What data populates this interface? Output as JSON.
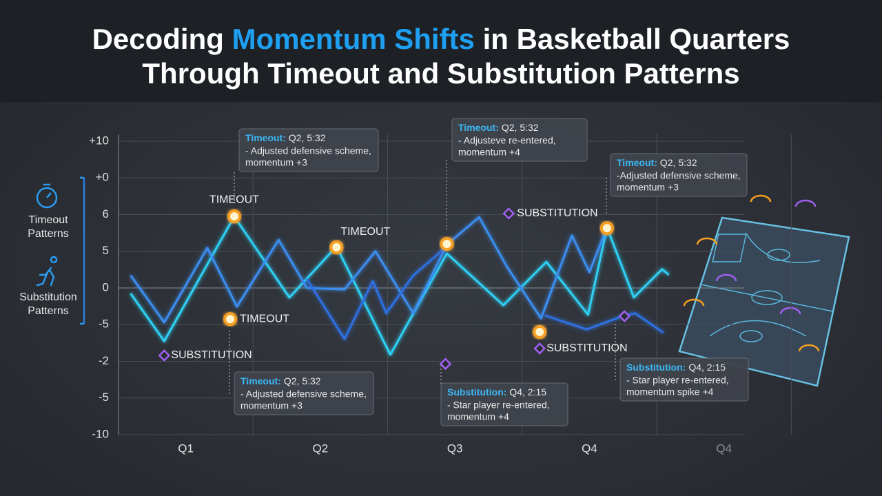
{
  "chart_data": {
    "type": "line",
    "title": {
      "line1": [
        "Decoding ",
        "Momentum Shifts",
        " in Basketball Quarters"
      ],
      "line2": "Through Timeout and Substitution Patterns"
    },
    "sidebar": [
      {
        "label_lines": [
          "Timeout",
          "Patterns"
        ]
      },
      {
        "label_lines": [
          "Substitution",
          "Patterns"
        ]
      }
    ],
    "y_axis_labels": [
      "+10",
      "+0",
      "6",
      "5",
      "0",
      "-5",
      "-2",
      "-5",
      "-10"
    ],
    "xlim": [
      0.5,
      5.15
    ],
    "ylim": [
      0,
      8
    ],
    "xticks": [
      {
        "value": 1,
        "label": "Q1"
      },
      {
        "value": 2,
        "label": "Q2"
      },
      {
        "value": 3,
        "label": "Q3"
      },
      {
        "value": 4,
        "label": "Q4"
      },
      {
        "value": 5,
        "label": "Q4"
      }
    ],
    "series": [
      {
        "color": "#2fd0f5",
        "x": [
          0.59,
          0.84,
          1.36,
          1.77,
          2.12,
          2.52,
          2.94,
          3.36,
          3.68,
          3.99,
          4.13,
          4.33,
          4.54,
          4.59
        ],
        "values": [
          3.85,
          2.55,
          5.95,
          3.74,
          5.13,
          2.18,
          4.94,
          3.53,
          4.71,
          3.27,
          5.65,
          3.74,
          4.51,
          4.36
        ]
      },
      {
        "color": "#3a8ef0",
        "x": [
          0.59,
          0.84,
          1.16,
          1.38,
          1.69,
          1.9,
          2.18,
          2.41,
          2.69,
          2.94,
          3.18,
          3.39,
          3.64,
          3.87,
          4.0,
          4.12
        ],
        "values": [
          4.34,
          3.06,
          5.09,
          3.49,
          5.31,
          4.0,
          3.96,
          5.0,
          3.31,
          5.18,
          5.93,
          4.56,
          3.17,
          5.43,
          4.43,
          5.56
        ]
      },
      {
        "color": "#2f6fe0",
        "x": [
          1.9,
          2.18,
          2.39,
          2.49,
          2.69,
          2.94,
          3.4,
          3.67,
          3.98,
          4.26,
          4.34,
          4.55
        ],
        "values": [
          4.24,
          2.61,
          4.19,
          3.31,
          4.34,
          5.13,
          null,
          3.25,
          2.87,
          3.25,
          3.31,
          2.78
        ]
      }
    ],
    "events": [
      {
        "kind": "timeout",
        "x": 1.36,
        "y": 5.95,
        "label": "TIMEOUT"
      },
      {
        "kind": "timeout",
        "x": 1.33,
        "y": 3.15,
        "label": "TIMEOUT"
      },
      {
        "kind": "timeout",
        "x": 2.12,
        "y": 5.11,
        "label": "TIMEOUT"
      },
      {
        "kind": "timeout",
        "x": 2.94,
        "y": 5.2
      },
      {
        "kind": "timeout",
        "x": 3.63,
        "y": 2.8
      },
      {
        "kind": "timeout",
        "x": 4.13,
        "y": 5.63
      },
      {
        "kind": "substitution",
        "x": 0.84,
        "y": 2.16,
        "label": "SUBSTITUTION"
      },
      {
        "kind": "substitution",
        "x": 2.93,
        "y": 1.93
      },
      {
        "kind": "substitution",
        "x": 3.4,
        "y": 6.03,
        "label": "SUBSTITUTION"
      },
      {
        "kind": "substitution",
        "x": 3.63,
        "y": 2.35,
        "label": "SUBSTITUTION"
      },
      {
        "kind": "substitution",
        "x": 4.26,
        "y": 3.23
      }
    ],
    "callouts": [
      {
        "head": "Timeout:",
        "time": "Q2, 5:32",
        "lines": [
          "- Adjusted defensive scheme,",
          "momentum +3"
        ]
      },
      {
        "head": "Timeout:",
        "time": "Q2, 5:32",
        "lines": [
          "- Adjustеve re-entered,",
          "momentum +4"
        ]
      },
      {
        "head": "Timeout:",
        "time": "Q2, 5:32",
        "lines": [
          "-Adjusted defensive scheme,",
          "momentum +3"
        ]
      },
      {
        "head": "Timeout:",
        "time": "Q2, 5:32",
        "lines": [
          "- Adjusted defensive scheme,",
          "momentum +3"
        ]
      },
      {
        "head": "Substitution:",
        "time": "Q4, 2:15",
        "lines": [
          "- Star player re-entered,",
          "momentum +4"
        ]
      },
      {
        "head": "Substitution:",
        "time": "Q4, 2:15",
        "lines": [
          "- Star player re-entered,",
          "momentum spike +4"
        ]
      }
    ]
  }
}
